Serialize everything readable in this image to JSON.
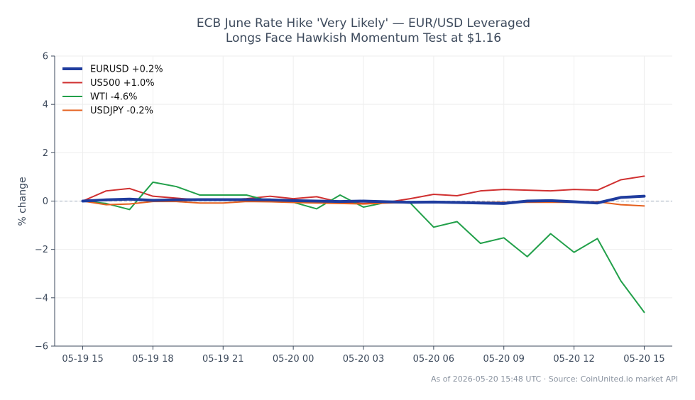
{
  "chart_data": {
    "type": "line",
    "title_lines": [
      "ECB June Rate Hike 'Very Likely' — EUR/USD Leveraged",
      "Longs Face Hawkish Momentum Test at $1.16"
    ],
    "xlabel": "",
    "ylabel": "% change",
    "ylim": [
      -6,
      6
    ],
    "yticks": [
      -6,
      -4,
      -2,
      0,
      2,
      4,
      6
    ],
    "ytick_labels": [
      "−6",
      "−4",
      "−2",
      "0",
      "2",
      "4",
      "6"
    ],
    "x_start": "2026-05-19 15:00",
    "x_step_hours": 1,
    "xlim_hours": [
      -1.2,
      25.2
    ],
    "xticks": [
      {
        "hour": 0,
        "label": "05-19 15"
      },
      {
        "hour": 3,
        "label": "05-19 18"
      },
      {
        "hour": 6,
        "label": "05-19 21"
      },
      {
        "hour": 9,
        "label": "05-20 00"
      },
      {
        "hour": 12,
        "label": "05-20 03"
      },
      {
        "hour": 15,
        "label": "05-20 06"
      },
      {
        "hour": 18,
        "label": "05-20 09"
      },
      {
        "hour": 21,
        "label": "05-20 12"
      },
      {
        "hour": 24,
        "label": "05-20 15"
      }
    ],
    "grid": true,
    "zero_line": true,
    "legend_position": "top-left",
    "series": [
      {
        "name": "EURUSD +0.2%",
        "color": "#1f3c9e",
        "width": 4,
        "values": [
          0.0,
          0.05,
          0.08,
          0.03,
          0.05,
          0.06,
          0.06,
          0.06,
          0.05,
          0.02,
          0.0,
          -0.02,
          0.0,
          -0.03,
          -0.05,
          -0.04,
          -0.06,
          -0.08,
          -0.1,
          0.0,
          0.02,
          -0.03,
          -0.08,
          0.15,
          0.2
        ]
      },
      {
        "name": "US500 +1.0%",
        "color": "#d03030",
        "width": 2,
        "values": [
          0.0,
          0.42,
          0.52,
          0.2,
          0.12,
          0.05,
          0.05,
          0.1,
          0.2,
          0.1,
          0.18,
          -0.05,
          -0.1,
          -0.05,
          0.1,
          0.28,
          0.22,
          0.42,
          0.48,
          0.45,
          0.42,
          0.48,
          0.45,
          0.88,
          1.03
        ]
      },
      {
        "name": "WTI -4.6%",
        "color": "#22a04a",
        "width": 2,
        "values": [
          0.0,
          -0.1,
          -0.35,
          0.78,
          0.6,
          0.25,
          0.25,
          0.25,
          0.0,
          -0.05,
          -0.32,
          0.25,
          -0.25,
          -0.05,
          -0.08,
          -1.08,
          -0.85,
          -1.75,
          -1.52,
          -2.3,
          -1.35,
          -2.12,
          -1.55,
          -3.3,
          -4.6
        ]
      },
      {
        "name": "USDJPY -0.2%",
        "color": "#e5601e",
        "width": 2,
        "values": [
          0.0,
          -0.15,
          -0.12,
          -0.02,
          -0.02,
          -0.08,
          -0.08,
          -0.02,
          -0.03,
          -0.06,
          -0.08,
          -0.1,
          -0.12,
          -0.08,
          -0.05,
          -0.06,
          -0.05,
          -0.05,
          -0.05,
          -0.05,
          -0.05,
          -0.05,
          -0.03,
          -0.15,
          -0.2
        ]
      }
    ]
  },
  "footnote": "As of 2026-05-20 15:48 UTC · Source: CoinUnited.io market API",
  "colors": {
    "axis": "#3d4a5c",
    "grid": "#eeeeee",
    "zero_line": "#9aa6b8",
    "title": "#3d4a5c"
  }
}
